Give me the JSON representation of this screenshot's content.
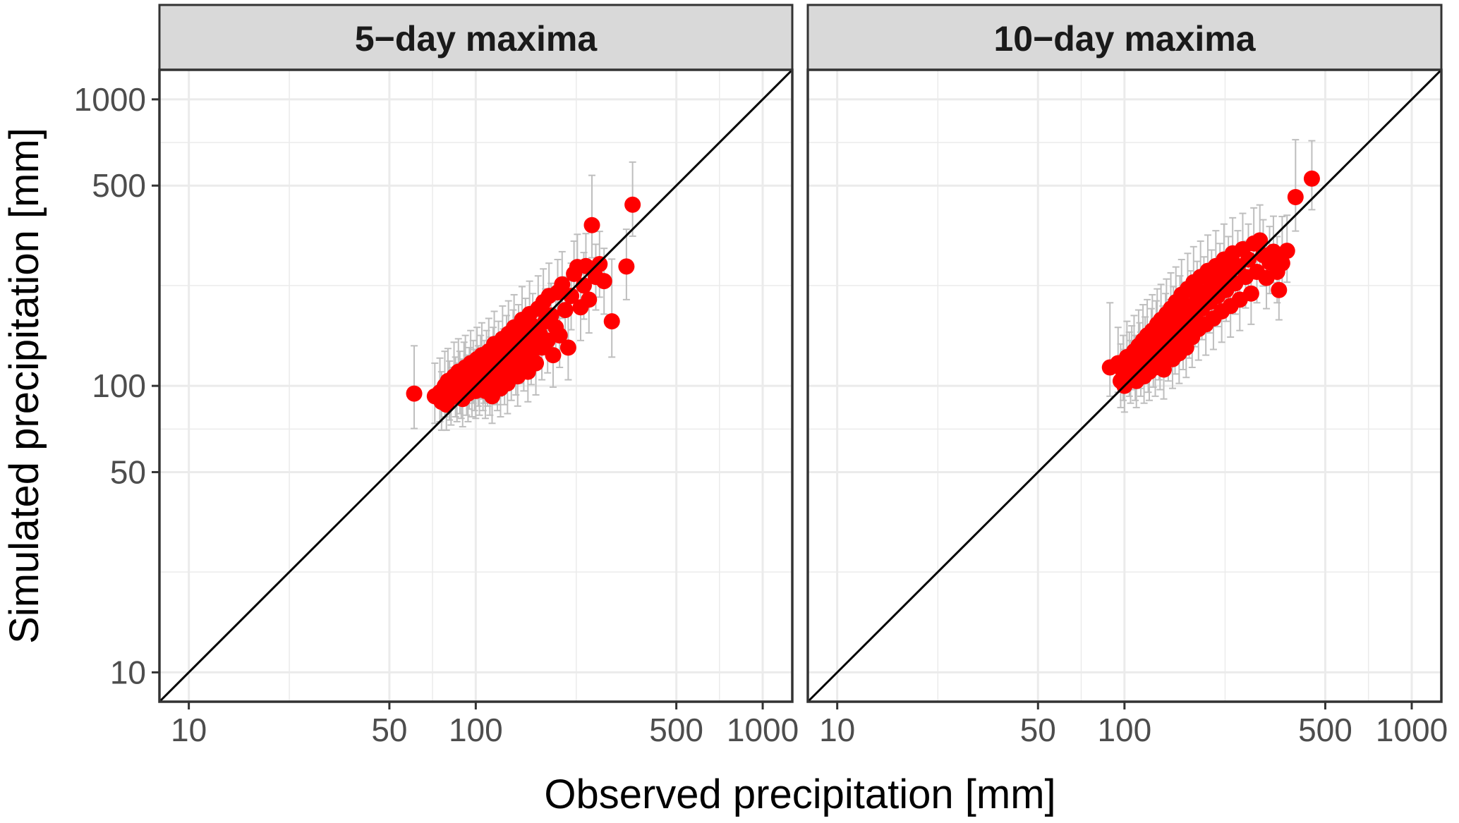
{
  "chart_data": {
    "type": "scatter",
    "facets": [
      "5−day maxima",
      "10−day maxima"
    ],
    "xlabel": "Observed precipitation [mm]",
    "ylabel": "Simulated precipitation [mm]",
    "xscale": "log10",
    "yscale": "log10",
    "xlim": [
      7.9,
      1268
    ],
    "ylim": [
      7.9,
      1268
    ],
    "xticks": [
      10,
      50,
      100,
      500,
      1000
    ],
    "yticks": [
      10,
      50,
      100,
      500,
      1000
    ],
    "xtick_labels": [
      "10",
      "50",
      "100",
      "500",
      "1000"
    ],
    "ytick_labels": [
      "10",
      "50",
      "100",
      "500",
      "1000"
    ],
    "minor_grid": [
      22.4,
      70.7,
      224,
      707
    ],
    "grid": true,
    "reference_line": "y = x (1:1 line)",
    "colors": {
      "points": "#ff0000",
      "errorbars": "#bebebe",
      "line": "#000000",
      "strip_bg": "#d9d9d9",
      "grid": "#ebebeb",
      "border": "#333333"
    },
    "point_format": [
      "observed",
      "simulated",
      "lower",
      "upper"
    ],
    "panels": [
      {
        "title": "5−day maxima",
        "points": [
          [
            61,
            94,
            71,
            138
          ],
          [
            72,
            92,
            74,
            120
          ],
          [
            75,
            95,
            75,
            125
          ],
          [
            76,
            88,
            70,
            112
          ],
          [
            78,
            100,
            78,
            132
          ],
          [
            79,
            86,
            70,
            108
          ],
          [
            80,
            104,
            80,
            135
          ],
          [
            81,
            96,
            76,
            122
          ],
          [
            82,
            91,
            73,
            116
          ],
          [
            84,
            108,
            84,
            142
          ],
          [
            85,
            98,
            78,
            126
          ],
          [
            86,
            94,
            75,
            120
          ],
          [
            87,
            112,
            86,
            146
          ],
          [
            88,
            102,
            80,
            132
          ],
          [
            89,
            96,
            77,
            124
          ],
          [
            90,
            90,
            72,
            114
          ],
          [
            91,
            110,
            86,
            142
          ],
          [
            92,
            116,
            90,
            150
          ],
          [
            93,
            100,
            79,
            128
          ],
          [
            94,
            94,
            75,
            120
          ],
          [
            95,
            106,
            83,
            136
          ],
          [
            96,
            120,
            93,
            156
          ],
          [
            97,
            99,
            78,
            127
          ],
          [
            98,
            112,
            87,
            144
          ],
          [
            99,
            104,
            82,
            134
          ],
          [
            100,
            96,
            77,
            122
          ],
          [
            101,
            124,
            96,
            160
          ],
          [
            102,
            108,
            85,
            138
          ],
          [
            103,
            100,
            79,
            128
          ],
          [
            104,
            116,
            90,
            150
          ],
          [
            105,
            128,
            99,
            166
          ],
          [
            106,
            104,
            82,
            134
          ],
          [
            107,
            112,
            87,
            144
          ],
          [
            108,
            96,
            77,
            122
          ],
          [
            109,
            120,
            93,
            156
          ],
          [
            110,
            108,
            85,
            138
          ],
          [
            111,
            132,
            102,
            172
          ],
          [
            112,
            100,
            79,
            128
          ],
          [
            113,
            114,
            89,
            148
          ],
          [
            114,
            92,
            74,
            118
          ],
          [
            115,
            124,
            96,
            160
          ],
          [
            116,
            140,
            108,
            182
          ],
          [
            118,
            110,
            86,
            142
          ],
          [
            119,
            104,
            82,
            134
          ],
          [
            120,
            130,
            101,
            168
          ],
          [
            121,
            118,
            92,
            152
          ],
          [
            122,
            98,
            78,
            126
          ],
          [
            124,
            146,
            113,
            190
          ],
          [
            125,
            122,
            95,
            158
          ],
          [
            126,
            110,
            86,
            142
          ],
          [
            128,
            136,
            105,
            176
          ],
          [
            129,
            102,
            80,
            130
          ],
          [
            130,
            152,
            117,
            198
          ],
          [
            132,
            126,
            98,
            162
          ],
          [
            133,
            114,
            89,
            148
          ],
          [
            135,
            142,
            110,
            184
          ],
          [
            136,
            160,
            123,
            208
          ],
          [
            138,
            120,
            93,
            156
          ],
          [
            140,
            108,
            85,
            138
          ],
          [
            141,
            148,
            114,
            192
          ],
          [
            143,
            132,
            102,
            172
          ],
          [
            145,
            170,
            130,
            222
          ],
          [
            147,
            124,
            96,
            160
          ],
          [
            149,
            156,
            120,
            202
          ],
          [
            150,
            140,
            108,
            182
          ],
          [
            152,
            112,
            88,
            144
          ],
          [
            154,
            178,
            136,
            232
          ],
          [
            156,
            130,
            101,
            168
          ],
          [
            158,
            162,
            125,
            210
          ],
          [
            160,
            146,
            113,
            190
          ],
          [
            162,
            120,
            93,
            156
          ],
          [
            165,
            186,
            142,
            242
          ],
          [
            167,
            152,
            117,
            198
          ],
          [
            170,
            136,
            105,
            176
          ],
          [
            172,
            196,
            150,
            256
          ],
          [
            175,
            168,
            129,
            218
          ],
          [
            178,
            144,
            111,
            186
          ],
          [
            180,
            206,
            157,
            268
          ],
          [
            183,
            176,
            135,
            228
          ],
          [
            186,
            128,
            99,
            166
          ],
          [
            190,
            160,
            123,
            208
          ],
          [
            193,
            212,
            162,
            276
          ],
          [
            196,
            150,
            116,
            196
          ],
          [
            200,
            226,
            172,
            294
          ],
          [
            205,
            184,
            141,
            240
          ],
          [
            210,
            136,
            105,
            176
          ],
          [
            215,
            206,
            157,
            268
          ],
          [
            220,
            246,
            188,
            320
          ],
          [
            226,
            260,
            198,
            338
          ],
          [
            232,
            188,
            144,
            245
          ],
          [
            238,
            224,
            171,
            292
          ],
          [
            242,
            262,
            200,
            340
          ],
          [
            248,
            200,
            153,
            262
          ],
          [
            254,
            364,
            280,
            543
          ],
          [
            262,
            240,
            184,
            312
          ],
          [
            270,
            266,
            204,
            346
          ],
          [
            280,
            232,
            178,
            302
          ],
          [
            298,
            168,
            126,
            277
          ],
          [
            335,
            261,
            200,
            352
          ],
          [
            352,
            429,
            333,
            604
          ]
        ]
      },
      {
        "title": "10−day maxima",
        "points": [
          [
            89,
            116,
            92,
            195
          ],
          [
            95,
            120,
            95,
            160
          ],
          [
            97,
            104,
            84,
            140
          ],
          [
            99,
            112,
            89,
            150
          ],
          [
            100,
            100,
            81,
            134
          ],
          [
            102,
            126,
            99,
            168
          ],
          [
            104,
            116,
            92,
            154
          ],
          [
            105,
            108,
            87,
            144
          ],
          [
            106,
            122,
            97,
            162
          ],
          [
            108,
            132,
            104,
            176
          ],
          [
            109,
            112,
            89,
            150
          ],
          [
            110,
            104,
            84,
            140
          ],
          [
            112,
            138,
            108,
            184
          ],
          [
            113,
            124,
            98,
            166
          ],
          [
            114,
            116,
            92,
            154
          ],
          [
            116,
            144,
            113,
            192
          ],
          [
            117,
            108,
            87,
            144
          ],
          [
            118,
            130,
            102,
            174
          ],
          [
            120,
            150,
            117,
            200
          ],
          [
            121,
            120,
            95,
            160
          ],
          [
            122,
            112,
            89,
            150
          ],
          [
            124,
            140,
            110,
            186
          ],
          [
            125,
            156,
            122,
            208
          ],
          [
            126,
            126,
            99,
            168
          ],
          [
            128,
            116,
            92,
            154
          ],
          [
            129,
            148,
            116,
            198
          ],
          [
            130,
            164,
            128,
            218
          ],
          [
            132,
            134,
            105,
            178
          ],
          [
            133,
            122,
            97,
            162
          ],
          [
            134,
            170,
            133,
            226
          ],
          [
            136,
            142,
            111,
            190
          ],
          [
            137,
            114,
            90,
            152
          ],
          [
            139,
            158,
            123,
            210
          ],
          [
            140,
            178,
            139,
            236
          ],
          [
            142,
            132,
            104,
            176
          ],
          [
            144,
            150,
            117,
            200
          ],
          [
            145,
            186,
            145,
            248
          ],
          [
            147,
            124,
            98,
            166
          ],
          [
            148,
            166,
            130,
            222
          ],
          [
            150,
            140,
            110,
            186
          ],
          [
            151,
            196,
            153,
            260
          ],
          [
            153,
            156,
            122,
            208
          ],
          [
            155,
            130,
            102,
            174
          ],
          [
            156,
            182,
            142,
            242
          ],
          [
            158,
            208,
            162,
            276
          ],
          [
            160,
            146,
            114,
            194
          ],
          [
            162,
            172,
            134,
            230
          ],
          [
            164,
            136,
            107,
            182
          ],
          [
            166,
            218,
            170,
            290
          ],
          [
            168,
            160,
            125,
            214
          ],
          [
            170,
            190,
            148,
            252
          ],
          [
            172,
            148,
            116,
            198
          ],
          [
            174,
            230,
            179,
            306
          ],
          [
            176,
            176,
            137,
            234
          ],
          [
            179,
            204,
            159,
            272
          ],
          [
            181,
            158,
            123,
            210
          ],
          [
            184,
            240,
            187,
            320
          ],
          [
            186,
            186,
            145,
            248
          ],
          [
            189,
            212,
            165,
            282
          ],
          [
            192,
            164,
            128,
            218
          ],
          [
            195,
            252,
            196,
            336
          ],
          [
            198,
            196,
            153,
            260
          ],
          [
            201,
            224,
            175,
            298
          ],
          [
            204,
            172,
            134,
            230
          ],
          [
            208,
            262,
            204,
            348
          ],
          [
            211,
            206,
            161,
            274
          ],
          [
            215,
            236,
            184,
            314
          ],
          [
            218,
            182,
            142,
            242
          ],
          [
            222,
            276,
            215,
            367
          ],
          [
            226,
            216,
            168,
            288
          ],
          [
            230,
            250,
            195,
            332
          ],
          [
            234,
            190,
            148,
            252
          ],
          [
            238,
            290,
            226,
            386
          ],
          [
            243,
            228,
            178,
            304
          ],
          [
            248,
            262,
            204,
            348
          ],
          [
            252,
            200,
            156,
            266
          ],
          [
            258,
            300,
            234,
            400
          ],
          [
            264,
            240,
            187,
            320
          ],
          [
            270,
            276,
            215,
            367
          ],
          [
            276,
            210,
            164,
            280
          ],
          [
            282,
            314,
            245,
            418
          ],
          [
            289,
            250,
            195,
            332
          ],
          [
            296,
            322,
            251,
            428
          ],
          [
            304,
            286,
            223,
            380
          ],
          [
            312,
            238,
            186,
            316
          ],
          [
            320,
            270,
            210,
            360
          ],
          [
            330,
            294,
            229,
            391
          ],
          [
            340,
            250,
            195,
            332
          ],
          [
            345,
            216,
            170,
            300
          ],
          [
            354,
            268,
            209,
            390
          ],
          [
            368,
            296,
            230,
            394
          ],
          [
            394,
            456,
            347,
            723
          ],
          [
            449,
            529,
            412,
            717
          ]
        ]
      }
    ]
  }
}
